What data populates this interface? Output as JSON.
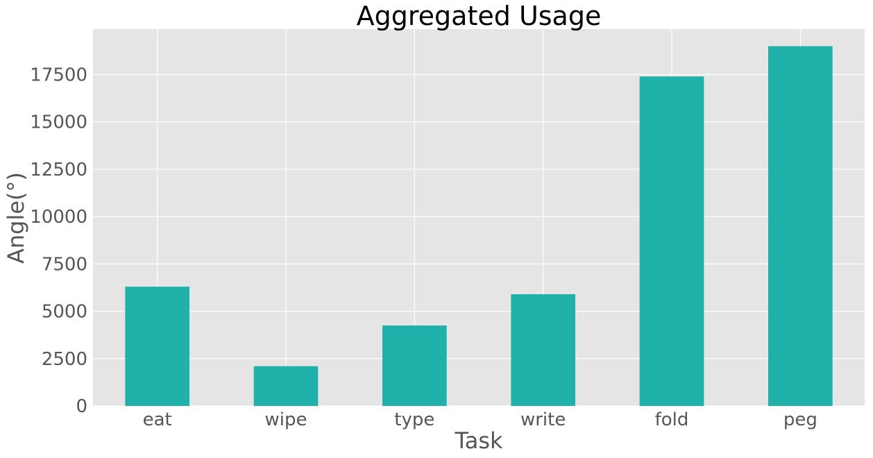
{
  "chart_data": {
    "type": "bar",
    "title": "Aggregated Usage",
    "xlabel": "Task",
    "ylabel": "Angle(°)",
    "categories": [
      "eat",
      "wipe",
      "type",
      "write",
      "fold",
      "peg"
    ],
    "values": [
      6300,
      2100,
      4250,
      5900,
      17400,
      19000
    ],
    "ylim": [
      0,
      19900
    ],
    "yticks": [
      0,
      2500,
      5000,
      7500,
      10000,
      12500,
      15000,
      17500
    ],
    "grid": true,
    "bar_color": "#20b2aa",
    "background_color": "#e5e5e5",
    "grid_color": "#ffffff"
  }
}
